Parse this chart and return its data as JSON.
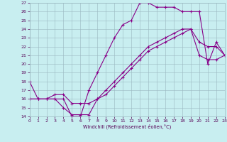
{
  "xlabel": "Windchill (Refroidissement éolien,°C)",
  "background_color": "#c8eef0",
  "grid_color": "#9ab8c0",
  "line_color": "#880088",
  "xlim": [
    0,
    23
  ],
  "ylim": [
    14,
    27
  ],
  "xticks": [
    0,
    1,
    2,
    3,
    4,
    5,
    6,
    7,
    8,
    9,
    10,
    11,
    12,
    13,
    14,
    15,
    16,
    17,
    18,
    19,
    20,
    21,
    22,
    23
  ],
  "yticks": [
    14,
    15,
    16,
    17,
    18,
    19,
    20,
    21,
    22,
    23,
    24,
    25,
    26,
    27
  ],
  "line1_x": [
    0,
    1,
    2,
    3,
    4,
    5,
    6,
    7,
    8,
    9,
    10,
    11,
    12,
    13,
    14,
    15,
    16,
    17,
    18,
    19,
    20,
    21,
    22,
    23
  ],
  "line1_y": [
    18,
    16,
    16,
    16,
    16,
    14,
    14,
    17,
    19,
    21,
    23,
    24.5,
    25,
    27,
    27,
    26.5,
    26.5,
    26.5,
    26,
    26,
    26,
    20,
    22.5,
    21
  ],
  "line2_x": [
    0,
    1,
    2,
    3,
    4,
    5,
    6,
    7,
    8,
    9,
    10,
    11,
    12,
    13,
    14,
    15,
    16,
    17,
    18,
    19,
    20,
    21,
    22,
    23
  ],
  "line2_y": [
    16,
    16,
    16,
    16,
    15,
    14.2,
    14.2,
    14.2,
    16,
    17,
    18,
    19,
    20,
    21,
    22,
    22.5,
    23,
    23.5,
    24,
    24,
    22.5,
    22,
    22,
    21
  ],
  "line3_x": [
    0,
    1,
    2,
    3,
    4,
    5,
    6,
    7,
    8,
    9,
    10,
    11,
    12,
    13,
    14,
    15,
    16,
    17,
    18,
    19,
    20,
    21,
    22,
    23
  ],
  "line3_y": [
    16,
    16,
    16,
    16.5,
    16.5,
    15.5,
    15.5,
    15.5,
    16,
    16.5,
    17.5,
    18.5,
    19.5,
    20.5,
    21.5,
    22.0,
    22.5,
    23.0,
    23.5,
    24.0,
    21.0,
    20.5,
    20.5,
    21.0
  ]
}
